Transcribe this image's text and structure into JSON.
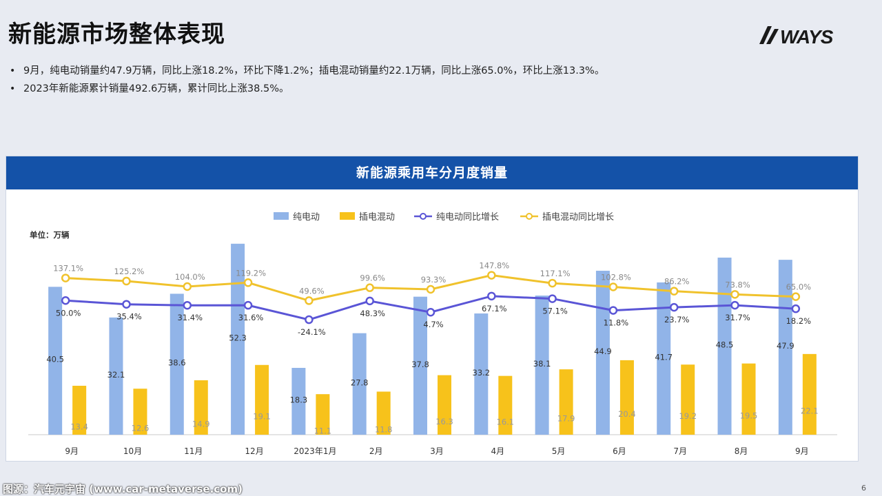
{
  "page": {
    "title": "新能源市场整体表现",
    "logo_text": "WAYS",
    "bullets": [
      "9月，纯电动销量约47.9万辆，同比上涨18.2%，环比下降1.2%；插电混动销量约22.1万辆，同比上涨65.0%，环比上涨13.3%。",
      "2023年新能源累计销量492.6万辆，累计同比上涨38.5%。"
    ],
    "footer": "图源：汽车元宇宙 (www.car-metaverse.com)",
    "page_number": "6"
  },
  "colors": {
    "bev_bar": "#91b4e8",
    "phev_bar": "#f7c21b",
    "bev_line": "#5a55d6",
    "phev_line": "#f0c22c",
    "header": "#1452a8"
  },
  "chart_data": {
    "type": "bar",
    "title": "新能源乘用车分月度销量",
    "unit_label": "单位：万辆",
    "categories": [
      "9月",
      "10月",
      "11月",
      "12月",
      "2023年1月",
      "2月",
      "3月",
      "4月",
      "5月",
      "6月",
      "7月",
      "8月",
      "9月"
    ],
    "series": [
      {
        "name": "纯电动",
        "kind": "bar",
        "values": [
          40.5,
          32.1,
          38.6,
          52.3,
          18.3,
          27.8,
          37.8,
          33.2,
          38.1,
          44.9,
          41.7,
          48.5,
          47.9
        ],
        "labels": [
          "40.5",
          "32.1",
          "38.6",
          "52.3",
          "18.3",
          "27.8",
          "37.8",
          "33.2",
          "38.1",
          "44.9",
          "41.7",
          "48.5",
          "47.9"
        ]
      },
      {
        "name": "插电混动",
        "kind": "bar",
        "values": [
          13.4,
          12.6,
          14.9,
          19.1,
          11.1,
          11.8,
          16.3,
          16.1,
          17.9,
          20.4,
          19.2,
          19.5,
          22.1
        ],
        "labels": [
          "13.4",
          "12.6",
          "14.9",
          "19.1",
          "11.1",
          "11.8",
          "16.3",
          "16.1",
          "17.9",
          "20.4",
          "19.2",
          "19.5",
          "22.1"
        ]
      },
      {
        "name": "纯电动同比增长",
        "kind": "line",
        "values": [
          50.0,
          35.4,
          31.4,
          31.6,
          -24.1,
          48.3,
          4.7,
          67.1,
          57.1,
          11.8,
          23.7,
          31.7,
          18.2
        ],
        "labels": [
          "50.0%",
          "35.4%",
          "31.4%",
          "31.6%",
          "-24.1%",
          "48.3%",
          "4.7%",
          "67.1%",
          "57.1%",
          "11.8%",
          "23.7%",
          "31.7%",
          "18.2%"
        ]
      },
      {
        "name": "插电混动同比增长",
        "kind": "line",
        "values": [
          137.1,
          125.2,
          104.0,
          119.2,
          49.6,
          99.6,
          93.3,
          147.8,
          117.1,
          102.8,
          86.2,
          73.8,
          65.0
        ],
        "labels": [
          "137.1%",
          "125.2%",
          "104.0%",
          "119.2%",
          "49.6%",
          "99.6%",
          "93.3%",
          "147.8%",
          "117.1%",
          "102.8%",
          "86.2%",
          "73.8%",
          "65.0%"
        ]
      }
    ]
  }
}
